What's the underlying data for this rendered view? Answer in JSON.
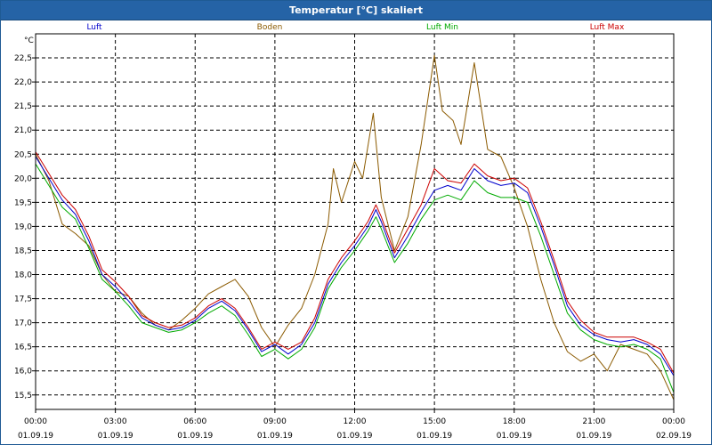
{
  "chart_data": {
    "type": "line",
    "title": "Temperatur [°C] skaliert",
    "ylabel": "°C",
    "xlabel": "",
    "ylim": [
      15.2,
      23.0
    ],
    "yticks": [
      15.5,
      16.0,
      16.5,
      17.0,
      17.5,
      18.0,
      18.5,
      19.0,
      19.5,
      20.0,
      20.5,
      21.0,
      21.5,
      22.0,
      22.5
    ],
    "ytick_labels": [
      "15,5",
      "16,0",
      "16,5",
      "17,0",
      "17,5",
      "18,0",
      "18,5",
      "19,0",
      "19,5",
      "20,0",
      "20,5",
      "21,0",
      "21,5",
      "22,0",
      "22,5"
    ],
    "xlim": [
      0,
      24
    ],
    "xticks": [
      0,
      3,
      6,
      9,
      12,
      15,
      18,
      21,
      24
    ],
    "xtick_labels": [
      {
        "time": "00:00",
        "date": "01.09.19"
      },
      {
        "time": "03:00",
        "date": "01.09.19"
      },
      {
        "time": "06:00",
        "date": "01.09.19"
      },
      {
        "time": "09:00",
        "date": "01.09.19"
      },
      {
        "time": "12:00",
        "date": "01.09.19"
      },
      {
        "time": "15:00",
        "date": "01.09.19"
      },
      {
        "time": "18:00",
        "date": "01.09.19"
      },
      {
        "time": "21:00",
        "date": "01.09.19"
      },
      {
        "time": "00:00",
        "date": "02.09.19"
      }
    ],
    "grid": true,
    "legend_position": "top",
    "series": [
      {
        "name": "Luft",
        "color": "#0000cc",
        "x": [
          0,
          0.5,
          1,
          1.5,
          2,
          2.5,
          3,
          3.5,
          4,
          4.5,
          5,
          5.5,
          6,
          6.5,
          7,
          7.5,
          8,
          8.5,
          9,
          9.5,
          10,
          10.5,
          11,
          11.5,
          12,
          12.5,
          12.8,
          13,
          13.5,
          14,
          14.5,
          15,
          15.5,
          16,
          16.5,
          17,
          17.5,
          18,
          18.5,
          19,
          19.5,
          20,
          20.5,
          21,
          21.5,
          22,
          22.5,
          23,
          23.5,
          24
        ],
        "values": [
          20.45,
          20.0,
          19.55,
          19.25,
          18.7,
          18.0,
          17.75,
          17.45,
          17.1,
          16.95,
          16.85,
          16.9,
          17.05,
          17.3,
          17.45,
          17.25,
          16.85,
          16.4,
          16.55,
          16.35,
          16.55,
          17.0,
          17.8,
          18.25,
          18.6,
          19.0,
          19.35,
          19.1,
          18.35,
          18.8,
          19.3,
          19.75,
          19.85,
          19.75,
          20.2,
          19.95,
          19.85,
          19.9,
          19.7,
          19.0,
          18.2,
          17.35,
          16.95,
          16.75,
          16.65,
          16.6,
          16.65,
          16.55,
          16.35,
          15.9
        ]
      },
      {
        "name": "Boden",
        "color": "#8b5a00",
        "x": [
          0,
          0.5,
          1,
          1.5,
          2,
          2.5,
          3,
          3.5,
          4,
          4.5,
          5,
          5.5,
          6,
          6.5,
          7,
          7.5,
          8,
          8.5,
          9,
          9.5,
          10,
          10.5,
          11,
          11.2,
          11.5,
          12,
          12.3,
          12.7,
          13,
          13.5,
          14,
          14.5,
          15,
          15.3,
          15.7,
          16,
          16.5,
          17,
          17.5,
          18,
          18.5,
          19,
          19.5,
          20,
          20.5,
          21,
          21.5,
          22,
          22.5,
          23,
          23.5,
          24
        ],
        "values": [
          20.5,
          19.95,
          19.05,
          18.85,
          18.6,
          18.0,
          17.65,
          17.55,
          17.2,
          16.95,
          16.85,
          17.05,
          17.3,
          17.6,
          17.75,
          17.9,
          17.55,
          16.9,
          16.5,
          16.95,
          17.3,
          18.0,
          19.05,
          20.2,
          19.5,
          20.35,
          20.0,
          21.35,
          19.6,
          18.5,
          19.2,
          20.7,
          22.55,
          21.4,
          21.2,
          20.7,
          22.4,
          20.6,
          20.45,
          19.8,
          19.0,
          17.9,
          17.0,
          16.4,
          16.2,
          16.35,
          16.0,
          16.55,
          16.45,
          16.35,
          16.0,
          15.4
        ]
      },
      {
        "name": "Luft Min",
        "color": "#00aa00",
        "x": [
          0,
          0.5,
          1,
          1.5,
          2,
          2.5,
          3,
          3.5,
          4,
          4.5,
          5,
          5.5,
          6,
          6.5,
          7,
          7.5,
          8,
          8.5,
          9,
          9.5,
          10,
          10.5,
          11,
          11.5,
          12,
          12.5,
          12.8,
          13,
          13.5,
          14,
          14.5,
          15,
          15.5,
          16,
          16.5,
          17,
          17.5,
          18,
          18.5,
          19,
          19.5,
          20,
          20.5,
          21,
          21.5,
          22,
          22.5,
          23,
          23.5,
          24
        ],
        "values": [
          20.3,
          19.85,
          19.4,
          19.15,
          18.55,
          17.9,
          17.65,
          17.35,
          17.0,
          16.9,
          16.8,
          16.85,
          17.0,
          17.2,
          17.35,
          17.15,
          16.75,
          16.3,
          16.45,
          16.25,
          16.45,
          16.9,
          17.7,
          18.15,
          18.5,
          18.9,
          19.2,
          18.95,
          18.25,
          18.65,
          19.15,
          19.55,
          19.65,
          19.55,
          19.95,
          19.7,
          19.6,
          19.6,
          19.5,
          18.8,
          18.0,
          17.2,
          16.85,
          16.65,
          16.55,
          16.5,
          16.55,
          16.45,
          16.25,
          15.55
        ]
      },
      {
        "name": "Luft Max",
        "color": "#cc0000",
        "x": [
          0,
          0.5,
          1,
          1.5,
          2,
          2.5,
          3,
          3.5,
          4,
          4.5,
          5,
          5.5,
          6,
          6.5,
          7,
          7.5,
          8,
          8.5,
          9,
          9.5,
          10,
          10.5,
          11,
          11.5,
          12,
          12.5,
          12.8,
          13,
          13.5,
          14,
          14.5,
          15,
          15.5,
          16,
          16.5,
          17,
          17.5,
          18,
          18.5,
          19,
          19.5,
          20,
          20.5,
          21,
          21.5,
          22,
          22.5,
          23,
          23.5,
          24
        ],
        "values": [
          20.55,
          20.1,
          19.65,
          19.35,
          18.8,
          18.1,
          17.85,
          17.55,
          17.15,
          17.0,
          16.9,
          16.95,
          17.1,
          17.35,
          17.5,
          17.3,
          16.9,
          16.45,
          16.6,
          16.45,
          16.6,
          17.1,
          17.9,
          18.35,
          18.7,
          19.1,
          19.45,
          19.2,
          18.45,
          18.95,
          19.45,
          20.2,
          19.95,
          19.9,
          20.3,
          20.05,
          19.95,
          20.0,
          19.8,
          19.1,
          18.3,
          17.45,
          17.05,
          16.8,
          16.7,
          16.7,
          16.7,
          16.6,
          16.45,
          15.95
        ]
      }
    ]
  }
}
